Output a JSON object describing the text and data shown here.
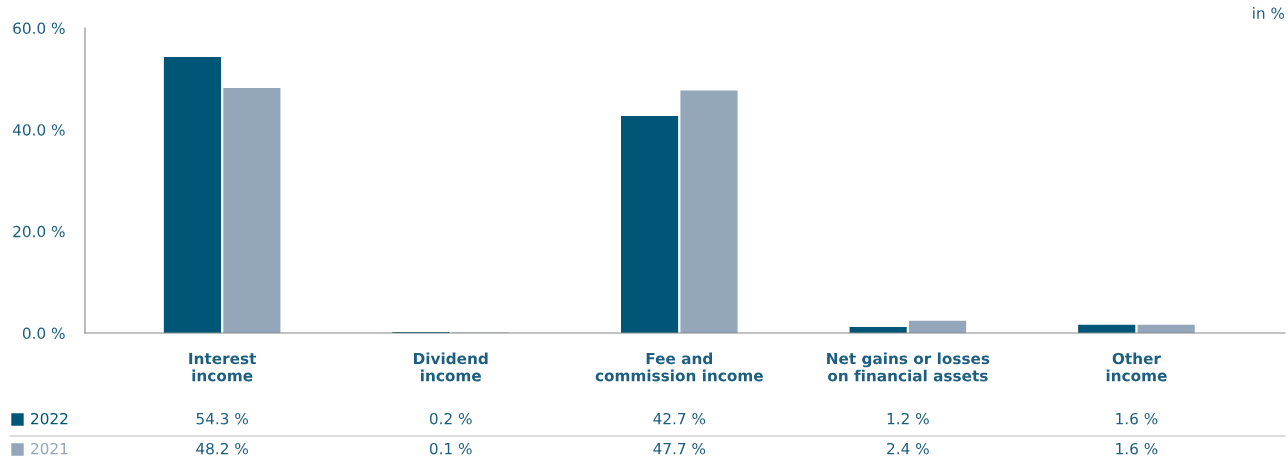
{
  "chart_data": {
    "type": "bar",
    "categories": [
      "Interest\nincome",
      "Dividend\nincome",
      "Fee and\ncommission income",
      "Net gains or losses\non financial assets",
      "Other\nincome"
    ],
    "series": [
      {
        "name": "2022",
        "color": "#005677",
        "values": [
          54.3,
          0.2,
          42.7,
          1.2,
          1.6
        ],
        "value_labels": [
          "54.3 %",
          "0.2 %",
          "42.7 %",
          "1.2 %",
          "1.6 %"
        ]
      },
      {
        "name": "2021",
        "color": "#94a6ba",
        "values": [
          48.2,
          0.1,
          47.7,
          2.4,
          1.6
        ],
        "value_labels": [
          "48.2 %",
          "0.1 %",
          "47.7 %",
          "2.4 %",
          "1.6 %"
        ]
      }
    ],
    "ylim": [
      0,
      60
    ],
    "yticks": [
      {
        "value": 0,
        "label": "0.0 %"
      },
      {
        "value": 20,
        "label": "20.0 %"
      },
      {
        "value": 40,
        "label": "40.0 %"
      },
      {
        "value": 60,
        "label": "60.0 %"
      }
    ],
    "annotations": [
      "in %"
    ],
    "legend": "bottom left",
    "grid": false
  }
}
